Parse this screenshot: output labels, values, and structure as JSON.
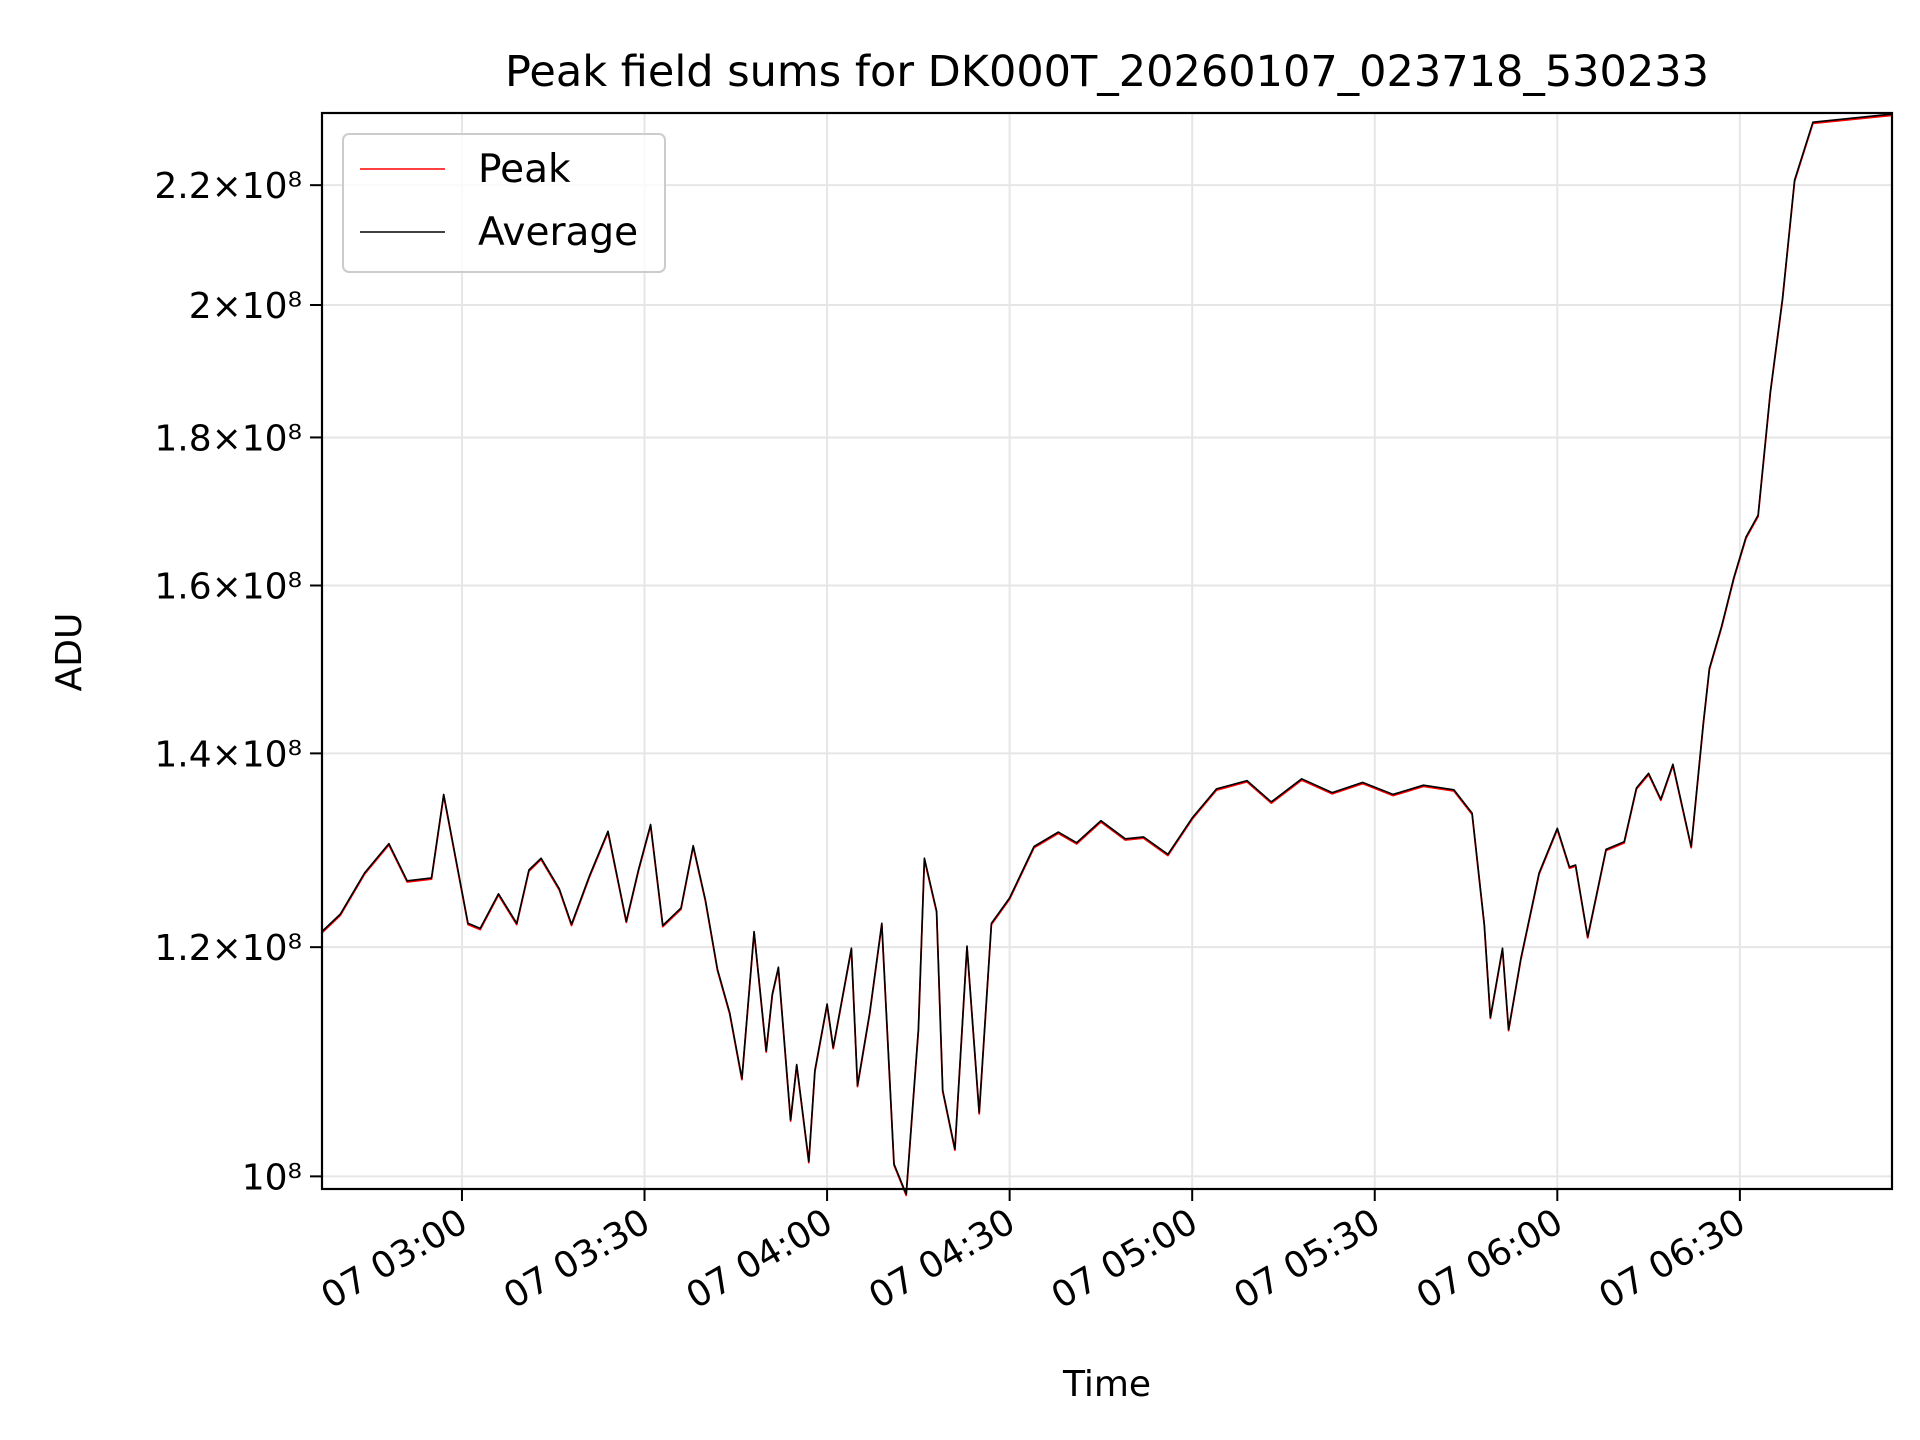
{
  "chart_data": {
    "type": "line",
    "title": "Peak field sums for DK000T_20260107_023718_530233",
    "xlabel": "Time",
    "ylabel": "ADU",
    "y_scale": "log",
    "xlim": [
      "07 02:37",
      "07 06:55"
    ],
    "ylim": [
      99000000,
      233000000
    ],
    "x_ticks": [
      "07 03:00",
      "07 03:30",
      "07 04:00",
      "07 04:30",
      "07 05:00",
      "07 05:30",
      "07 06:00",
      "07 06:30"
    ],
    "y_ticks": [
      {
        "value": 100000000,
        "mantissa": "",
        "exp": "8"
      },
      {
        "value": 120000000,
        "mantissa": "1.2",
        "exp": "8"
      },
      {
        "value": 140000000,
        "mantissa": "1.4",
        "exp": "8"
      },
      {
        "value": 160000000,
        "mantissa": "1.6",
        "exp": "8"
      },
      {
        "value": 180000000,
        "mantissa": "1.8",
        "exp": "8"
      },
      {
        "value": 200000000,
        "mantissa": "2",
        "exp": "8"
      },
      {
        "value": 220000000,
        "mantissa": "2.2",
        "exp": "8"
      }
    ],
    "grid": true,
    "legend_position": "top-left",
    "series": [
      {
        "name": "Peak",
        "color": "#ff0000"
      },
      {
        "name": "Average",
        "color": "#000000"
      }
    ],
    "x": [
      "07 02:37",
      "07 02:40",
      "07 02:44",
      "07 02:48",
      "07 02:51",
      "07 02:55",
      "07 02:57",
      "07 03:01",
      "07 03:03",
      "07 03:06",
      "07 03:09",
      "07 03:11",
      "07 03:13",
      "07 03:16",
      "07 03:18",
      "07 03:21",
      "07 03:24",
      "07 03:27",
      "07 03:29",
      "07 03:31",
      "07 03:33",
      "07 03:36",
      "07 03:38",
      "07 03:40",
      "07 03:42",
      "07 03:44",
      "07 03:46",
      "07 03:48",
      "07 03:50",
      "07 03:51",
      "07 03:52",
      "07 03:54",
      "07 03:55",
      "07 03:57",
      "07 03:58",
      "07 04:00",
      "07 04:01",
      "07 04:04",
      "07 04:05",
      "07 04:07",
      "07 04:09",
      "07 04:11",
      "07 04:13",
      "07 04:15",
      "07 04:16",
      "07 04:18",
      "07 04:19",
      "07 04:21",
      "07 04:23",
      "07 04:25",
      "07 04:27",
      "07 04:30",
      "07 04:34",
      "07 04:38",
      "07 04:41",
      "07 04:45",
      "07 04:49",
      "07 04:52",
      "07 04:56",
      "07 05:00",
      "07 05:04",
      "07 05:09",
      "07 05:13",
      "07 05:18",
      "07 05:23",
      "07 05:28",
      "07 05:33",
      "07 05:38",
      "07 05:43",
      "07 05:46",
      "07 05:48",
      "07 05:49",
      "07 05:51",
      "07 05:52",
      "07 05:54",
      "07 05:57",
      "07 06:00",
      "07 06:02",
      "07 06:03",
      "07 06:05",
      "07 06:08",
      "07 06:11",
      "07 06:13",
      "07 06:15",
      "07 06:17",
      "07 06:19",
      "07 06:22",
      "07 06:24",
      "07 06:25",
      "07 06:27",
      "07 06:29",
      "07 06:31",
      "07 06:33",
      "07 06:35",
      "07 06:37",
      "07 06:39",
      "07 06:42",
      "07 06:55"
    ],
    "y": [
      121500000,
      123200000,
      127300000,
      130300000,
      126500000,
      126800000,
      135500000,
      122300000,
      121800000,
      125200000,
      122300000,
      127600000,
      128800000,
      125700000,
      122200000,
      127100000,
      131600000,
      122500000,
      127600000,
      132300000,
      122100000,
      123800000,
      130100000,
      124600000,
      117900000,
      113900000,
      108100000,
      121500000,
      110500000,
      115600000,
      118100000,
      104600000,
      109300000,
      101200000,
      108800000,
      114700000,
      110800000,
      119900000,
      107500000,
      113900000,
      122300000,
      101000000,
      98600000,
      112400000,
      128800000,
      123500000,
      107100000,
      102200000,
      120100000,
      105200000,
      122300000,
      124800000,
      130000000,
      131500000,
      130400000,
      132700000,
      130800000,
      131000000,
      129200000,
      133000000,
      136100000,
      137000000,
      134700000,
      137200000,
      135700000,
      136800000,
      135500000,
      136500000,
      136000000,
      133500000,
      122200000,
      113500000,
      119900000,
      112400000,
      118900000,
      127300000,
      131900000,
      127900000,
      128100000,
      121000000,
      129700000,
      130500000,
      136200000,
      137800000,
      135000000,
      138800000,
      130000000,
      143500000,
      149800000,
      154900000,
      161000000,
      166300000,
      169200000,
      186600000,
      201000000,
      220900000,
      231300000,
      232800000
    ]
  }
}
